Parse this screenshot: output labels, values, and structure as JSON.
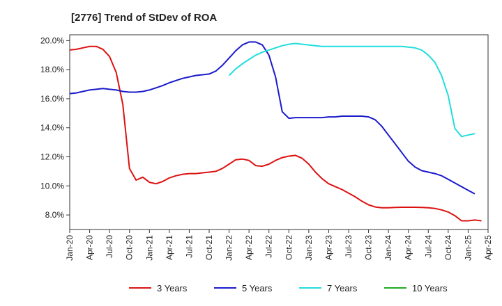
{
  "chart_data": {
    "type": "line",
    "title": "[2776]  Trend of StDev of ROA",
    "xlabel": "",
    "ylabel": "",
    "x_ticks": [
      "Jan-20",
      "Apr-20",
      "Jul-20",
      "Oct-20",
      "Jan-21",
      "Apr-21",
      "Jul-21",
      "Oct-21",
      "Jan-22",
      "Apr-22",
      "Jul-22",
      "Oct-22",
      "Jan-23",
      "Apr-23",
      "Jul-23",
      "Oct-23",
      "Jan-24",
      "Apr-24",
      "Jul-24",
      "Oct-24",
      "Jan-25",
      "Apr-25"
    ],
    "y_ticks": [
      "8.0%",
      "10.0%",
      "12.0%",
      "14.0%",
      "16.0%",
      "18.0%",
      "20.0%"
    ],
    "y_tick_values": [
      8,
      10,
      12,
      14,
      16,
      18,
      20
    ],
    "ylim": [
      7.0,
      20.4
    ],
    "xlim": [
      0,
      63
    ],
    "grid": false,
    "legend_position": "bottom",
    "series": [
      {
        "name": "3 Years",
        "color": "#dd1111",
        "start_index": 0,
        "values": [
          19.35,
          19.4,
          19.5,
          19.6,
          19.6,
          19.4,
          18.9,
          17.8,
          15.6,
          11.2,
          10.4,
          10.6,
          10.25,
          10.15,
          10.3,
          10.55,
          10.7,
          10.8,
          10.85,
          10.85,
          10.9,
          10.95,
          11.0,
          11.2,
          11.5,
          11.8,
          11.85,
          11.75,
          11.4,
          11.35,
          11.5,
          11.75,
          11.95,
          12.05,
          12.1,
          11.9,
          11.5,
          10.95,
          10.5,
          10.15,
          9.95,
          9.75,
          9.5,
          9.25,
          8.95,
          8.7,
          8.55,
          8.5,
          8.5,
          8.52,
          8.53,
          8.53,
          8.53,
          8.52,
          8.5,
          8.45,
          8.35,
          8.2,
          7.95,
          7.6,
          7.6,
          7.65,
          7.6
        ]
      },
      {
        "name": "5 Years",
        "color": "#1a1acc",
        "start_index": 0,
        "values": [
          16.35,
          16.4,
          16.5,
          16.6,
          16.65,
          16.7,
          16.65,
          16.6,
          16.5,
          16.45,
          16.45,
          16.5,
          16.6,
          16.75,
          16.9,
          17.1,
          17.25,
          17.4,
          17.5,
          17.6,
          17.65,
          17.7,
          17.9,
          18.3,
          18.8,
          19.3,
          19.7,
          19.9,
          19.9,
          19.7,
          19.0,
          17.5,
          15.1,
          14.65,
          14.7,
          14.7,
          14.7,
          14.7,
          14.7,
          14.75,
          14.75,
          14.8,
          14.8,
          14.8,
          14.8,
          14.75,
          14.55,
          14.1,
          13.5,
          12.9,
          12.3,
          11.7,
          11.3,
          11.05,
          10.95,
          10.85,
          10.7,
          10.45,
          10.2,
          9.95,
          9.7,
          9.45
        ]
      },
      {
        "name": "7 Years",
        "color": "#22dddd",
        "start_index": 24,
        "values": [
          17.6,
          18.05,
          18.4,
          18.7,
          19.0,
          19.2,
          19.35,
          19.5,
          19.65,
          19.75,
          19.8,
          19.75,
          19.7,
          19.65,
          19.6,
          19.6,
          19.6,
          19.6,
          19.6,
          19.6,
          19.6,
          19.6,
          19.6,
          19.6,
          19.6,
          19.6,
          19.6,
          19.55,
          19.5,
          19.35,
          19.0,
          18.5,
          17.6,
          16.2,
          13.95,
          13.4,
          13.5,
          13.6
        ]
      },
      {
        "name": "10 Years",
        "color": "#22aa22",
        "start_index": 0,
        "values": []
      }
    ]
  }
}
